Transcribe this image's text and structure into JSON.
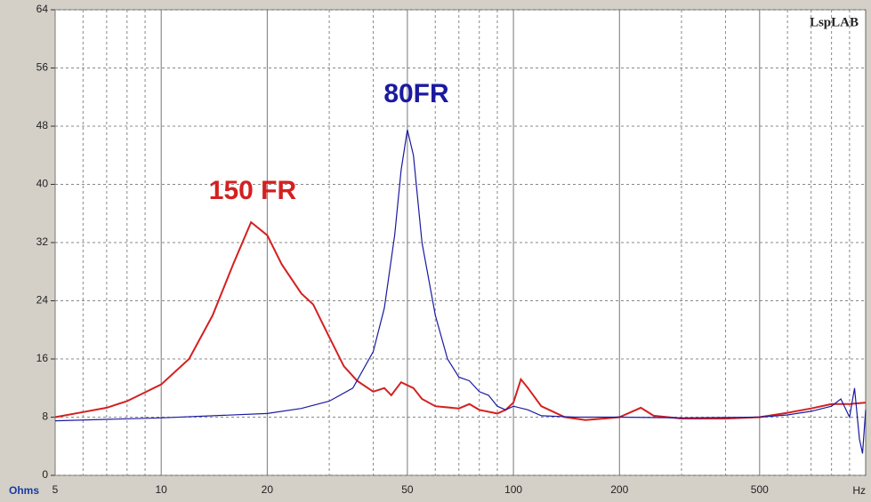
{
  "chart_data": {
    "type": "line",
    "watermark": "LspLAB",
    "x_label": "Hz",
    "y_label": "Ohms",
    "log_x": true,
    "grid": true,
    "xlim": [
      5,
      1000
    ],
    "xticks": [
      5,
      10,
      20,
      50,
      100,
      200,
      500
    ],
    "xminor": [
      6,
      7,
      8,
      9,
      30,
      40,
      60,
      70,
      80,
      90,
      300,
      400,
      600,
      700,
      800,
      900
    ],
    "ylim": [
      0,
      64
    ],
    "yticks": [
      0,
      8,
      16,
      24,
      32,
      40,
      48,
      56,
      64
    ],
    "series": [
      {
        "name": "150 FR",
        "color": "#d42020",
        "x": [
          5,
          6,
          7,
          8,
          10,
          12,
          14,
          16,
          18,
          20,
          22,
          25,
          27,
          30,
          33,
          36,
          40,
          43,
          45,
          48,
          52,
          55,
          60,
          70,
          75,
          80,
          90,
          95,
          100,
          105,
          110,
          120,
          140,
          160,
          180,
          200,
          230,
          250,
          300,
          400,
          500,
          600,
          700,
          800,
          900,
          1000
        ],
        "values": [
          8,
          8.7,
          9.3,
          10.2,
          12.5,
          16,
          22,
          29,
          34.8,
          33,
          29,
          25,
          23.5,
          19,
          15,
          13,
          11.5,
          12,
          11,
          12.8,
          12,
          10.5,
          9.5,
          9.2,
          9.8,
          9,
          8.5,
          9,
          10,
          13.2,
          12,
          9.5,
          8,
          7.6,
          7.8,
          8,
          9.3,
          8.2,
          7.8,
          7.8,
          8,
          8.6,
          9.2,
          9.8,
          9.8,
          10
        ]
      },
      {
        "name": "80FR",
        "color": "#1a1aa0",
        "x": [
          5,
          10,
          20,
          25,
          30,
          35,
          40,
          43,
          46,
          48,
          50,
          52,
          55,
          60,
          65,
          70,
          75,
          80,
          85,
          90,
          95,
          100,
          110,
          120,
          150,
          200,
          300,
          500,
          600,
          700,
          800,
          850,
          900,
          930,
          960,
          980,
          1000
        ],
        "values": [
          7.5,
          7.9,
          8.5,
          9.2,
          10.2,
          12,
          17,
          23,
          33,
          42,
          47.5,
          44,
          32,
          22,
          16,
          13.5,
          13,
          11.5,
          11,
          9.5,
          9,
          9.5,
          9,
          8.2,
          8,
          8,
          7.9,
          8,
          8.3,
          8.8,
          9.5,
          10.5,
          8,
          12,
          5,
          3,
          9
        ]
      }
    ]
  }
}
